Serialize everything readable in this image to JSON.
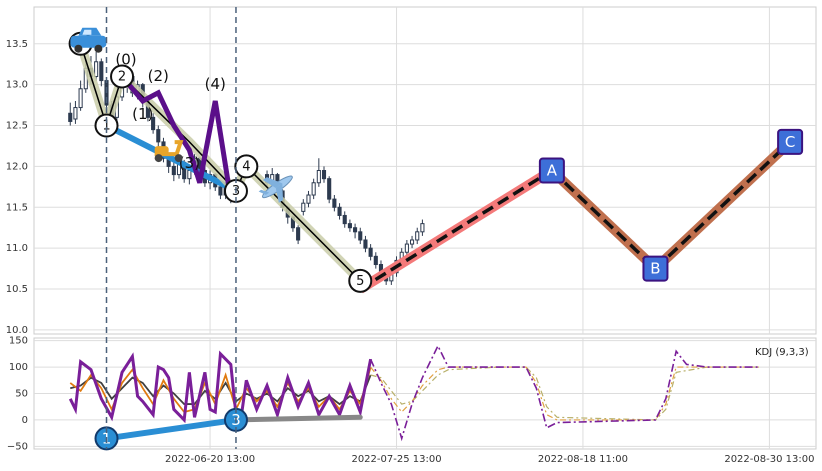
{
  "chart_data": [
    {
      "type": "candlestick",
      "panel": "price",
      "ylim": [
        9.95,
        13.95
      ],
      "y_ticks": [
        "10.0",
        "10.5",
        "11.0",
        "11.5",
        "12.0",
        "12.5",
        "13.0",
        "13.5"
      ],
      "y_tick_values": [
        10.0,
        10.5,
        11.0,
        11.5,
        12.0,
        12.5,
        13.0,
        13.5
      ],
      "x_range": [
        0,
        151
      ],
      "x_ticks": [
        {
          "label": "2022-06-20 13:00",
          "x": 34
        },
        {
          "label": "2022-07-25 13:00",
          "x": 70
        },
        {
          "label": "2022-08-18 11:00",
          "x": 106
        },
        {
          "label": "2022-08-30 13:00",
          "x": 142
        }
      ],
      "grid": true,
      "up_color": "#2d3a4f",
      "down_color": "#2d3a4f",
      "candles": [
        [
          7,
          12.65,
          12.55,
          12.78,
          12.5
        ],
        [
          8,
          12.58,
          12.72,
          12.8,
          12.52
        ],
        [
          9,
          12.72,
          12.95,
          13.05,
          12.68
        ],
        [
          10,
          12.95,
          13.2,
          13.3,
          12.9
        ],
        [
          11,
          13.2,
          13.1,
          13.35,
          13.0
        ],
        [
          12,
          13.1,
          13.28,
          13.4,
          13.05
        ],
        [
          13,
          13.28,
          13.05,
          13.32,
          12.98
        ],
        [
          14,
          13.05,
          12.75,
          13.08,
          12.7
        ],
        [
          15,
          12.75,
          12.6,
          12.8,
          12.52
        ],
        [
          16,
          12.6,
          12.85,
          12.9,
          12.55
        ],
        [
          17,
          12.85,
          13.0,
          13.08,
          12.8
        ],
        [
          18,
          12.98,
          13.12,
          13.2,
          12.9
        ],
        [
          19,
          13.1,
          12.9,
          13.15,
          12.85
        ],
        [
          20,
          12.9,
          13.0,
          13.05,
          12.82
        ],
        [
          21,
          13.0,
          12.8,
          13.02,
          12.72
        ],
        [
          22,
          12.8,
          12.6,
          12.85,
          12.55
        ],
        [
          23,
          12.6,
          12.45,
          12.65,
          12.4
        ],
        [
          24,
          12.45,
          12.3,
          12.5,
          12.22
        ],
        [
          25,
          12.3,
          12.1,
          12.35,
          12.05
        ],
        [
          26,
          12.1,
          12.0,
          12.15,
          11.92
        ],
        [
          27,
          12.0,
          11.9,
          12.05,
          11.82
        ],
        [
          28,
          11.9,
          12.05,
          12.1,
          11.85
        ],
        [
          29,
          12.05,
          11.85,
          12.08,
          11.8
        ],
        [
          30,
          11.85,
          11.95,
          12.0,
          11.78
        ],
        [
          31,
          11.95,
          12.1,
          12.15,
          11.9
        ],
        [
          32,
          12.1,
          11.95,
          12.12,
          11.9
        ],
        [
          33,
          11.95,
          11.8,
          12.0,
          11.75
        ],
        [
          34,
          11.8,
          11.9,
          11.95,
          11.72
        ],
        [
          35,
          11.9,
          11.75,
          11.92,
          11.7
        ],
        [
          36,
          11.75,
          11.65,
          11.8,
          11.6
        ],
        [
          37,
          11.65,
          11.75,
          11.8,
          11.6
        ],
        [
          38,
          11.75,
          11.6,
          11.78,
          11.55
        ],
        [
          39,
          11.6,
          11.7,
          11.75,
          11.55
        ],
        [
          40,
          11.7,
          11.62,
          11.74,
          11.58
        ],
        [
          45,
          11.9,
          11.8,
          11.95,
          11.75
        ],
        [
          46,
          11.8,
          11.9,
          11.98,
          11.76
        ],
        [
          47,
          11.9,
          11.7,
          11.92,
          11.65
        ],
        [
          48,
          11.7,
          11.5,
          11.72,
          11.45
        ],
        [
          49,
          11.5,
          11.38,
          11.52,
          11.3
        ],
        [
          50,
          11.38,
          11.25,
          11.4,
          11.2
        ],
        [
          51,
          11.25,
          11.1,
          11.28,
          11.05
        ],
        [
          52,
          11.45,
          11.55,
          11.6,
          11.4
        ],
        [
          53,
          11.55,
          11.65,
          11.7,
          11.5
        ],
        [
          54,
          11.65,
          11.8,
          11.85,
          11.6
        ],
        [
          55,
          11.8,
          11.95,
          12.1,
          11.75
        ],
        [
          56,
          11.95,
          11.85,
          12.0,
          11.8
        ],
        [
          57,
          11.85,
          11.6,
          11.88,
          11.55
        ],
        [
          58,
          11.6,
          11.5,
          11.65,
          11.45
        ],
        [
          59,
          11.5,
          11.4,
          11.55,
          11.35
        ],
        [
          60,
          11.4,
          11.3,
          11.45,
          11.25
        ],
        [
          61,
          11.3,
          11.25,
          11.35,
          11.2
        ],
        [
          62,
          11.25,
          11.2,
          11.3,
          11.12
        ],
        [
          63,
          11.2,
          11.1,
          11.25,
          11.05
        ],
        [
          64,
          11.1,
          11.0,
          11.15,
          10.95
        ],
        [
          65,
          11.0,
          10.9,
          11.05,
          10.85
        ],
        [
          66,
          10.9,
          10.8,
          10.95,
          10.75
        ],
        [
          67,
          10.8,
          10.7,
          10.85,
          10.62
        ],
        [
          68,
          10.7,
          10.6,
          10.75,
          10.55
        ],
        [
          69,
          10.6,
          10.7,
          10.75,
          10.55
        ],
        [
          70,
          10.7,
          10.85,
          10.9,
          10.65
        ],
        [
          71,
          10.85,
          10.95,
          11.0,
          10.8
        ],
        [
          72,
          10.95,
          11.05,
          11.1,
          10.9
        ],
        [
          73,
          11.05,
          11.1,
          11.15,
          11.0
        ],
        [
          74,
          11.1,
          11.2,
          11.25,
          11.05
        ],
        [
          75,
          11.2,
          11.3,
          11.35,
          11.15
        ]
      ],
      "waves": {
        "primary": {
          "x": [
            9,
            14,
            17,
            30,
            39,
            41,
            63
          ],
          "y": [
            13.5,
            12.5,
            13.1,
            12.3,
            11.7,
            12.0,
            10.6
          ],
          "labels": [
            "0",
            "1",
            "2",
            "",
            "3",
            "4",
            "5"
          ],
          "color": "#000000"
        },
        "secondary": {
          "x": [
            17,
            21,
            24,
            27,
            30,
            32,
            35,
            38
          ],
          "y": [
            13.1,
            12.8,
            12.9,
            12.5,
            12.2,
            11.8,
            12.8,
            11.6
          ],
          "labels": [
            "(0)",
            "(1)",
            "(2)",
            "",
            "(3)",
            "",
            "(4)",
            ""
          ],
          "color": "#5b0f8a"
        },
        "trend_line": {
          "x": [
            14,
            39
          ],
          "y": [
            12.5,
            11.7
          ],
          "color": "#2a8ed4"
        },
        "projection": {
          "x": [
            63,
            100,
            120,
            146
          ],
          "y": [
            10.5,
            11.95,
            10.75,
            12.3
          ],
          "labels": [
            "",
            "A",
            "B",
            "C"
          ],
          "colors": [
            "#f47a7a",
            "#c0704e",
            "#c0704e"
          ]
        }
      },
      "icons": [
        "car-icon",
        "scooter-icon",
        "airplane-icon"
      ]
    },
    {
      "type": "line",
      "panel": "indicator",
      "legend": "KDJ (9,3,3)",
      "ylim": [
        -55,
        155
      ],
      "y_ticks": [
        "150",
        "100",
        "50",
        "0",
        "−50"
      ],
      "y_tick_values": [
        150,
        100,
        50,
        0,
        -50
      ],
      "x_range": [
        0,
        151
      ],
      "markers": [
        {
          "label": "1",
          "x": 14,
          "y": -35
        },
        {
          "label": "3",
          "x": 39,
          "y": 0
        }
      ],
      "series": [
        {
          "name": "K",
          "color": "#e07b10"
        },
        {
          "name": "D",
          "color": "#404040"
        },
        {
          "name": "J",
          "color": "#7a1f99"
        }
      ],
      "k_points": [
        [
          7,
          70
        ],
        [
          9,
          55
        ],
        [
          11,
          85
        ],
        [
          13,
          60
        ],
        [
          15,
          20
        ],
        [
          17,
          70
        ],
        [
          19,
          95
        ],
        [
          21,
          60
        ],
        [
          23,
          30
        ],
        [
          25,
          75
        ],
        [
          27,
          40
        ],
        [
          29,
          15
        ],
        [
          31,
          20
        ],
        [
          33,
          70
        ],
        [
          35,
          30
        ],
        [
          37,
          85
        ],
        [
          39,
          20
        ],
        [
          41,
          60
        ],
        [
          43,
          35
        ],
        [
          45,
          55
        ],
        [
          47,
          25
        ],
        [
          49,
          70
        ],
        [
          51,
          35
        ],
        [
          53,
          60
        ],
        [
          55,
          25
        ],
        [
          57,
          45
        ],
        [
          59,
          20
        ],
        [
          61,
          55
        ],
        [
          63,
          30
        ],
        [
          65,
          100
        ],
        [
          67,
          75
        ],
        [
          69,
          40
        ],
        [
          71,
          15
        ],
        [
          73,
          35
        ],
        [
          75,
          65
        ],
        [
          78,
          95
        ],
        [
          80,
          100
        ],
        [
          90,
          100
        ],
        [
          95,
          100
        ],
        [
          97,
          70
        ],
        [
          99,
          10
        ],
        [
          101,
          0
        ],
        [
          120,
          0
        ],
        [
          122,
          30
        ],
        [
          124,
          100
        ],
        [
          130,
          100
        ],
        [
          140,
          100
        ]
      ],
      "d_points": [
        [
          7,
          60
        ],
        [
          9,
          65
        ],
        [
          11,
          80
        ],
        [
          13,
          70
        ],
        [
          15,
          40
        ],
        [
          17,
          60
        ],
        [
          19,
          80
        ],
        [
          21,
          70
        ],
        [
          23,
          45
        ],
        [
          25,
          65
        ],
        [
          27,
          50
        ],
        [
          29,
          30
        ],
        [
          31,
          30
        ],
        [
          33,
          55
        ],
        [
          35,
          40
        ],
        [
          37,
          70
        ],
        [
          39,
          35
        ],
        [
          41,
          50
        ],
        [
          43,
          40
        ],
        [
          45,
          50
        ],
        [
          47,
          35
        ],
        [
          49,
          60
        ],
        [
          51,
          45
        ],
        [
          53,
          55
        ],
        [
          55,
          35
        ],
        [
          57,
          45
        ],
        [
          59,
          30
        ],
        [
          61,
          45
        ],
        [
          63,
          35
        ],
        [
          65,
          85
        ],
        [
          67,
          80
        ],
        [
          69,
          55
        ],
        [
          71,
          30
        ],
        [
          73,
          35
        ],
        [
          75,
          55
        ],
        [
          78,
          85
        ],
        [
          80,
          95
        ],
        [
          90,
          100
        ],
        [
          95,
          100
        ],
        [
          97,
          80
        ],
        [
          99,
          25
        ],
        [
          101,
          5
        ],
        [
          120,
          0
        ],
        [
          122,
          20
        ],
        [
          124,
          90
        ],
        [
          130,
          100
        ],
        [
          140,
          100
        ]
      ],
      "j_points": [
        [
          7,
          40
        ],
        [
          8,
          20
        ],
        [
          9,
          110
        ],
        [
          11,
          95
        ],
        [
          13,
          40
        ],
        [
          15,
          5
        ],
        [
          17,
          90
        ],
        [
          19,
          120
        ],
        [
          20,
          45
        ],
        [
          21,
          35
        ],
        [
          23,
          10
        ],
        [
          24,
          100
        ],
        [
          25,
          95
        ],
        [
          26,
          80
        ],
        [
          27,
          20
        ],
        [
          29,
          0
        ],
        [
          30,
          90
        ],
        [
          31,
          5
        ],
        [
          33,
          90
        ],
        [
          34,
          20
        ],
        [
          35,
          15
        ],
        [
          36,
          125
        ],
        [
          38,
          105
        ],
        [
          39,
          10
        ],
        [
          40,
          5
        ],
        [
          41,
          75
        ],
        [
          43,
          20
        ],
        [
          45,
          65
        ],
        [
          47,
          10
        ],
        [
          49,
          80
        ],
        [
          51,
          25
        ],
        [
          53,
          70
        ],
        [
          55,
          10
        ],
        [
          57,
          45
        ],
        [
          59,
          10
        ],
        [
          61,
          65
        ],
        [
          63,
          15
        ],
        [
          65,
          115
        ],
        [
          67,
          70
        ],
        [
          69,
          30
        ],
        [
          71,
          -35
        ],
        [
          73,
          30
        ],
        [
          75,
          80
        ],
        [
          78,
          140
        ],
        [
          80,
          100
        ],
        [
          90,
          100
        ],
        [
          95,
          100
        ],
        [
          97,
          60
        ],
        [
          99,
          -15
        ],
        [
          101,
          -5
        ],
        [
          120,
          0
        ],
        [
          122,
          40
        ],
        [
          124,
          130
        ],
        [
          126,
          105
        ],
        [
          130,
          100
        ],
        [
          140,
          100
        ]
      ],
      "trend": [
        {
          "x": [
            14,
            39
          ],
          "y": [
            -35,
            0
          ],
          "color": "#2a8ed4"
        },
        {
          "x": [
            39,
            63
          ],
          "y": [
            0,
            5
          ],
          "color": "#888888"
        }
      ]
    }
  ]
}
